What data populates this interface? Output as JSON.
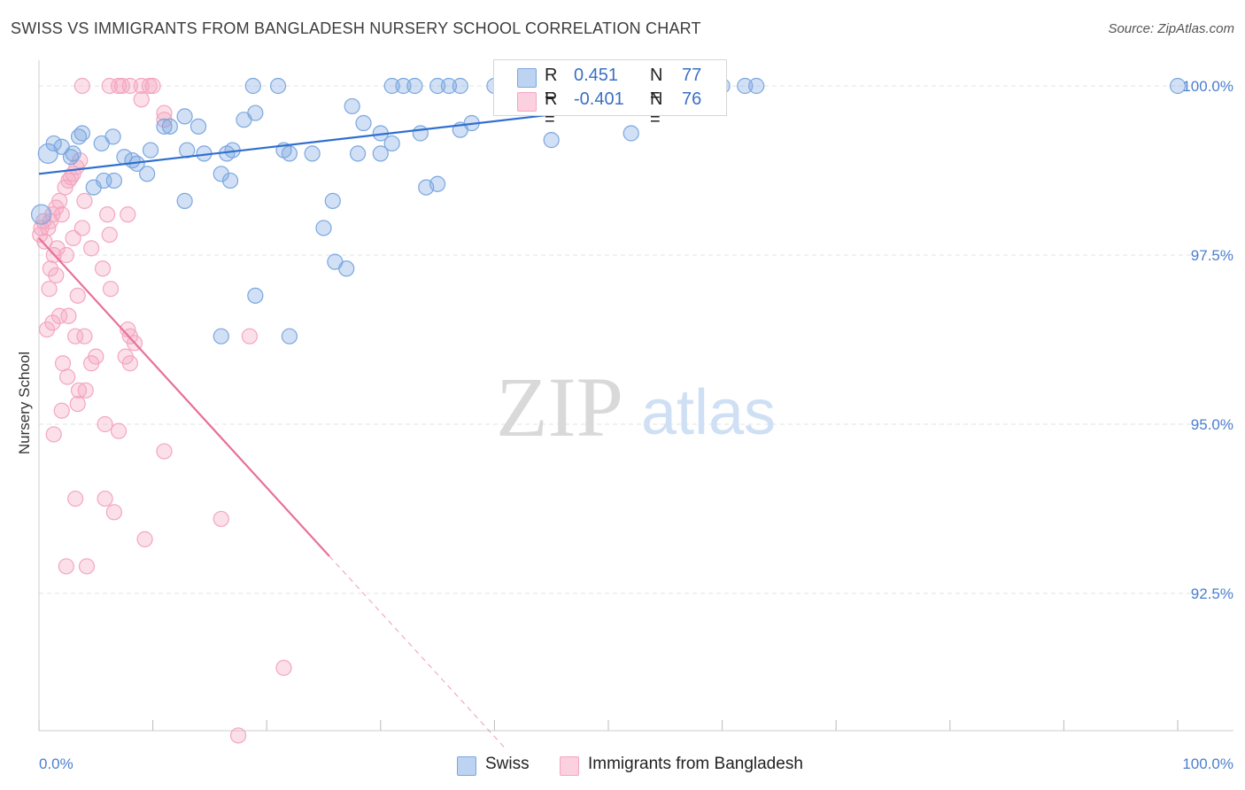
{
  "title": "SWISS VS IMMIGRANTS FROM BANGLADESH NURSERY SCHOOL CORRELATION CHART",
  "source": "Source: ZipAtlas.com",
  "watermark": {
    "zip": "ZIP",
    "atlas": "atlas"
  },
  "legend": {
    "r_label": "R =",
    "n_label": "N =",
    "swiss": {
      "r": "0.451",
      "n": "77"
    },
    "bangladesh": {
      "r": "-0.401",
      "n": "76"
    }
  },
  "bottom_legend": {
    "swiss": "Swiss",
    "bangladesh": "Immigrants from Bangladesh"
  },
  "chart_data": {
    "type": "scatter",
    "xlabel": "",
    "ylabel": "Nursery School",
    "xlim": [
      0,
      100
    ],
    "ylim": [
      90.2,
      100.3
    ],
    "x_tick_labels": [
      "0.0%",
      "100.0%"
    ],
    "y_ticks": [
      92.5,
      95.0,
      97.5,
      100.0
    ],
    "y_tick_labels": [
      "92.5%",
      "95.0%",
      "97.5%",
      "100.0%"
    ],
    "colors": {
      "swiss": "#7ba7e0",
      "swiss_line": "#2f6fcf",
      "bangladesh": "#f4a6bf",
      "bangladesh_line": "#e8709a"
    },
    "series": [
      {
        "name": "Swiss",
        "trend": {
          "x0": 0,
          "y0": 98.7,
          "x1": 54,
          "y1": 99.75
        },
        "points": [
          [
            0.2,
            98.1
          ],
          [
            0.8,
            99.0
          ],
          [
            1.3,
            99.15
          ],
          [
            2.0,
            99.1
          ],
          [
            3.0,
            99.0
          ],
          [
            2.8,
            98.95
          ],
          [
            3.5,
            99.25
          ],
          [
            3.8,
            99.3
          ],
          [
            5.5,
            99.15
          ],
          [
            6.5,
            99.25
          ],
          [
            4.8,
            98.5
          ],
          [
            5.7,
            98.6
          ],
          [
            6.6,
            98.6
          ],
          [
            7.5,
            98.95
          ],
          [
            8.2,
            98.9
          ],
          [
            8.6,
            98.85
          ],
          [
            9.5,
            98.7
          ],
          [
            11.0,
            99.4
          ],
          [
            11.5,
            99.4
          ],
          [
            9.8,
            99.05
          ],
          [
            12.8,
            99.55
          ],
          [
            14.0,
            99.4
          ],
          [
            14.5,
            99.0
          ],
          [
            13.0,
            99.05
          ],
          [
            12.8,
            98.3
          ],
          [
            16.0,
            98.7
          ],
          [
            16.8,
            98.6
          ],
          [
            17.0,
            99.05
          ],
          [
            18.0,
            99.5
          ],
          [
            19.0,
            99.6
          ],
          [
            18.8,
            100.0
          ],
          [
            21.0,
            100.0
          ],
          [
            16.5,
            99.0
          ],
          [
            21.5,
            99.05
          ],
          [
            22.0,
            99.0
          ],
          [
            24.0,
            99.0
          ],
          [
            25.8,
            98.3
          ],
          [
            25.0,
            97.9
          ],
          [
            26.0,
            97.4
          ],
          [
            27.0,
            97.3
          ],
          [
            27.5,
            99.7
          ],
          [
            28.0,
            99.0
          ],
          [
            30.0,
            99.0
          ],
          [
            31.0,
            100.0
          ],
          [
            33.0,
            100.0
          ],
          [
            32.0,
            100.0
          ],
          [
            35.0,
            100.0
          ],
          [
            36.0,
            100.0
          ],
          [
            37.0,
            100.0
          ],
          [
            40.0,
            100.0
          ],
          [
            41.0,
            100.0
          ],
          [
            45.0,
            100.0
          ],
          [
            46.0,
            100.0
          ],
          [
            48.0,
            100.0
          ],
          [
            49.0,
            100.0
          ],
          [
            52.0,
            100.0
          ],
          [
            53.0,
            100.0
          ],
          [
            55.0,
            100.0
          ],
          [
            56.0,
            100.0
          ],
          [
            58.0,
            100.0
          ],
          [
            60.0,
            100.0
          ],
          [
            62.0,
            100.0
          ],
          [
            63.0,
            100.0
          ],
          [
            38.0,
            99.45
          ],
          [
            37.0,
            99.35
          ],
          [
            33.5,
            99.3
          ],
          [
            34.0,
            98.5
          ],
          [
            31.0,
            99.15
          ],
          [
            28.5,
            99.45
          ],
          [
            30.0,
            99.3
          ],
          [
            35.0,
            98.55
          ],
          [
            45.0,
            99.2
          ],
          [
            52.0,
            99.3
          ],
          [
            16.0,
            96.3
          ],
          [
            19.0,
            96.9
          ],
          [
            22.0,
            96.3
          ],
          [
            100.0,
            100.0
          ]
        ]
      },
      {
        "name": "Immigrants from Bangladesh",
        "trend": {
          "x0": 0,
          "y0": 97.75,
          "x1": 25.5,
          "y1": 93.05,
          "dash_x1": 41,
          "dash_y1": 90.2
        },
        "points": [
          [
            0.1,
            97.8
          ],
          [
            0.2,
            97.9
          ],
          [
            0.4,
            98.0
          ],
          [
            0.5,
            97.7
          ],
          [
            0.8,
            97.9
          ],
          [
            1.0,
            98.0
          ],
          [
            1.2,
            98.1
          ],
          [
            1.5,
            98.2
          ],
          [
            1.8,
            98.3
          ],
          [
            2.0,
            98.1
          ],
          [
            2.3,
            98.5
          ],
          [
            2.6,
            98.6
          ],
          [
            3.0,
            98.7
          ],
          [
            3.3,
            98.8
          ],
          [
            3.6,
            98.9
          ],
          [
            2.8,
            98.65
          ],
          [
            1.6,
            97.6
          ],
          [
            1.3,
            97.5
          ],
          [
            2.4,
            97.5
          ],
          [
            1.0,
            97.3
          ],
          [
            0.9,
            97.0
          ],
          [
            1.5,
            97.2
          ],
          [
            3.4,
            96.9
          ],
          [
            1.8,
            96.6
          ],
          [
            2.6,
            96.6
          ],
          [
            1.2,
            96.5
          ],
          [
            0.7,
            96.4
          ],
          [
            3.2,
            96.3
          ],
          [
            4.0,
            96.3
          ],
          [
            5.0,
            96.0
          ],
          [
            2.1,
            95.9
          ],
          [
            4.6,
            95.9
          ],
          [
            2.5,
            95.7
          ],
          [
            3.5,
            95.5
          ],
          [
            4.1,
            95.5
          ],
          [
            3.4,
            95.3
          ],
          [
            2.0,
            95.2
          ],
          [
            5.8,
            95.0
          ],
          [
            7.0,
            94.9
          ],
          [
            1.3,
            94.85
          ],
          [
            3.2,
            93.9
          ],
          [
            5.8,
            93.9
          ],
          [
            6.6,
            93.7
          ],
          [
            7.8,
            96.4
          ],
          [
            8.0,
            96.3
          ],
          [
            8.4,
            96.2
          ],
          [
            7.6,
            96.0
          ],
          [
            8.0,
            95.9
          ],
          [
            5.6,
            97.3
          ],
          [
            6.3,
            97.0
          ],
          [
            6.0,
            98.1
          ],
          [
            7.8,
            98.1
          ],
          [
            6.2,
            97.8
          ],
          [
            3.8,
            97.9
          ],
          [
            4.0,
            98.3
          ],
          [
            4.6,
            97.6
          ],
          [
            3.0,
            97.75
          ],
          [
            11.0,
            99.6
          ],
          [
            11.0,
            99.5
          ],
          [
            9.0,
            99.8
          ],
          [
            7.0,
            100.0
          ],
          [
            7.3,
            100.0
          ],
          [
            6.2,
            100.0
          ],
          [
            9.0,
            100.0
          ],
          [
            10.0,
            100.0
          ],
          [
            3.8,
            100.0
          ],
          [
            11.0,
            94.6
          ],
          [
            9.3,
            93.3
          ],
          [
            16.0,
            93.6
          ],
          [
            18.5,
            96.3
          ],
          [
            2.4,
            92.9
          ],
          [
            4.2,
            92.9
          ],
          [
            21.5,
            91.4
          ],
          [
            17.5,
            90.4
          ],
          [
            8.0,
            100.0
          ],
          [
            9.7,
            100.0
          ]
        ]
      }
    ]
  }
}
